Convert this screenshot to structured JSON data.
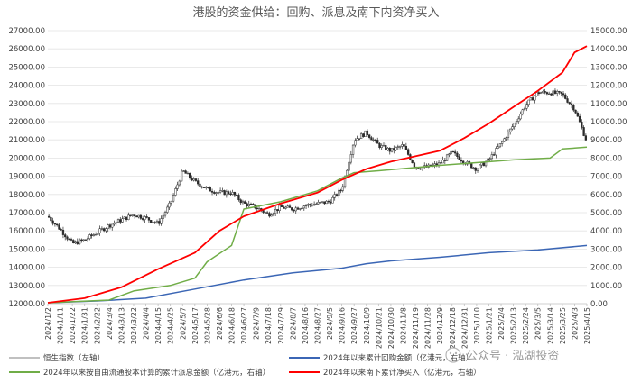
{
  "chart_data": {
    "type": "line",
    "title": "港股的资金供给：回购、派息及南下内资净买入",
    "watermark": "公众号 · 泓湖投资",
    "grid": true,
    "y_left": {
      "lim": [
        12000,
        27000
      ],
      "ticks": [
        "12000.00",
        "13000.00",
        "14000.00",
        "15000.00",
        "16000.00",
        "17000.00",
        "18000.00",
        "19000.00",
        "20000.00",
        "21000.00",
        "22000.00",
        "23000.00",
        "24000.00",
        "25000.00",
        "26000.00",
        "27000.00"
      ]
    },
    "y_right": {
      "lim": [
        0,
        15000
      ],
      "ticks": [
        "0.00",
        "1000.00",
        "2000.00",
        "3000.00",
        "4000.00",
        "5000.00",
        "6000.00",
        "7000.00",
        "8000.00",
        "9000.00",
        "10000.00",
        "11000.00",
        "12000.00",
        "13000.00",
        "14000.00",
        "15000.00"
      ]
    },
    "x_ticks": [
      "2024/1/2",
      "2024/1/11",
      "2024/1/22",
      "2024/1/31",
      "2024/2/22",
      "2024/3/4",
      "2024/3/13",
      "2024/3/22",
      "2024/4/4",
      "2024/4/15",
      "2024/4/25",
      "2024/5/7",
      "2024/5/17",
      "2024/5/28",
      "2024/6/6",
      "2024/6/18",
      "2024/6/27",
      "2024/7/9",
      "2024/7/18",
      "2024/7/29",
      "2024/8/7",
      "2024/8/16",
      "2024/8/27",
      "2024/9/5",
      "2024/9/16",
      "2024/9/27",
      "2024/10/9",
      "2024/10/21",
      "2024/10/30",
      "2024/11/8",
      "2024/11/19",
      "2024/11/28",
      "2024/12/9",
      "2024/12/18",
      "2024/12/31",
      "2025/1/10",
      "2025/1/21",
      "2025/2/4",
      "2025/2/13",
      "2025/2/24",
      "2025/3/5",
      "2025/3/14",
      "2025/3/25",
      "2025/4/3",
      "2025/4/15"
    ],
    "series": [
      {
        "name": "恒生指数（左轴）",
        "axis": "left",
        "color": "#2b2b2b",
        "style": "candlestick",
        "x_index": [
          0,
          1,
          2,
          3,
          4,
          5,
          6,
          7,
          8,
          9,
          10,
          11,
          12,
          13,
          14,
          15,
          16,
          17,
          18,
          19,
          20,
          21,
          22,
          23,
          24,
          25,
          26,
          27,
          28,
          29,
          30,
          31,
          32,
          33,
          34,
          35,
          36,
          37,
          38,
          39,
          40,
          41,
          42,
          43,
          44
        ],
        "values": [
          16800,
          16100,
          15300,
          15500,
          15900,
          16300,
          16600,
          16900,
          16700,
          16400,
          17500,
          19300,
          18700,
          18300,
          18100,
          18100,
          17500,
          17300,
          16900,
          17300,
          17200,
          17400,
          17500,
          17600,
          18300,
          21000,
          21400,
          20700,
          20400,
          20700,
          19500,
          19500,
          19700,
          20300,
          19800,
          19400,
          19900,
          20800,
          21800,
          22900,
          23600,
          23600,
          23500,
          22700,
          20900
        ]
      },
      {
        "name": "2024年以来累计回购金额（亿港元，右轴）",
        "axis": "right",
        "color": "#3b66b5",
        "x_index": [
          0,
          4,
          8,
          12,
          16,
          20,
          24,
          26,
          28,
          32,
          36,
          40,
          44
        ],
        "values": [
          50,
          150,
          300,
          800,
          1300,
          1700,
          1950,
          2200,
          2350,
          2550,
          2800,
          2950,
          3200
        ]
      },
      {
        "name": "2024年以来按自由流通股本计算的累计派息金额（亿港元，右轴）",
        "axis": "right",
        "color": "#70ad47",
        "x_index": [
          0,
          5,
          7,
          10,
          12,
          13,
          15,
          16,
          19,
          22,
          24,
          25,
          27,
          32,
          34,
          38,
          41,
          42,
          44
        ],
        "values": [
          50,
          200,
          700,
          1000,
          1400,
          2300,
          3200,
          5200,
          5600,
          6200,
          6900,
          7200,
          7300,
          7600,
          7700,
          7900,
          8000,
          8500,
          8600
        ]
      },
      {
        "name": "2024年以来南下累计净买入（亿港元，右轴）",
        "axis": "right",
        "color": "#ff0000",
        "x_index": [
          0,
          3,
          6,
          9,
          12,
          14,
          16,
          19,
          22,
          24,
          26,
          28,
          30,
          32,
          34,
          36,
          38,
          40,
          42,
          43,
          44
        ],
        "values": [
          50,
          300,
          900,
          1900,
          2800,
          4000,
          4800,
          5500,
          6100,
          6800,
          7400,
          7800,
          8100,
          8400,
          9100,
          9900,
          10800,
          11700,
          12700,
          13800,
          14150
        ]
      }
    ],
    "legend": {
      "placement": "bottom",
      "items": [
        {
          "label": "恒生指数（左轴）",
          "color": "#c0c0c0"
        },
        {
          "label": "2024年以来累计回购金额（亿港元，右轴）",
          "color": "#3b66b5"
        },
        {
          "label": "2024年以来按自由流通股本计算的累计派息金额（亿港元，右轴）",
          "color": "#70ad47"
        },
        {
          "label": "2024年以来南下累计净买入（亿港元，右轴）",
          "color": "#ff0000"
        }
      ]
    }
  }
}
